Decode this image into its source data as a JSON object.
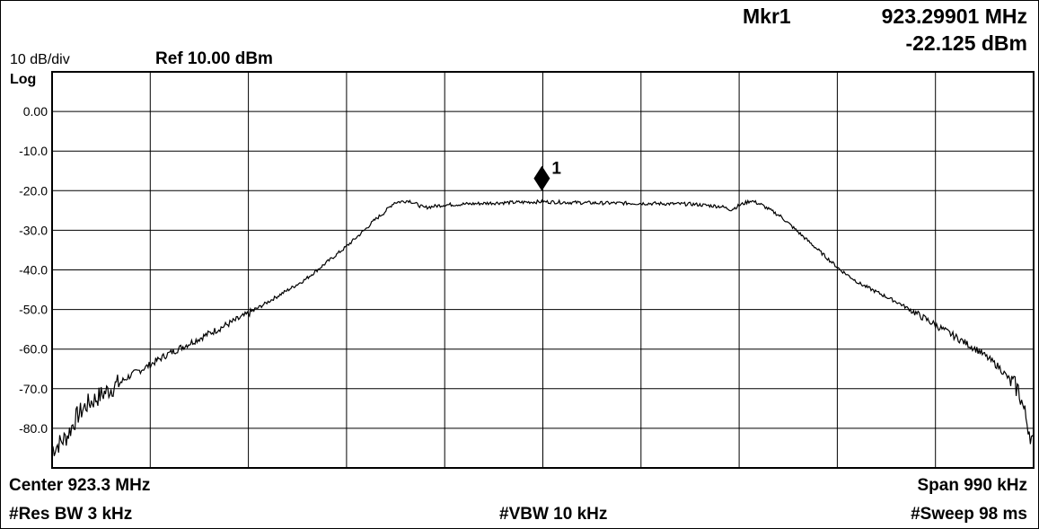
{
  "header": {
    "scale": "10 dB/div",
    "ref": "Ref 10.00 dBm",
    "scale_type": "Log",
    "marker_label": "Mkr1",
    "marker_freq": "923.29901 MHz",
    "marker_level": "-22.125 dBm"
  },
  "footer": {
    "center": "Center 923.3 MHz",
    "span": "Span 990 kHz",
    "res_bw": "#Res BW 3 kHz",
    "vbw": "#VBW 10 kHz",
    "sweep": "#Sweep 98 ms"
  },
  "marker": {
    "id": "1",
    "freq_mhz": 923.29901,
    "level_dbm": -22.125
  },
  "colors": {
    "trace": "#000000",
    "grid": "#000000",
    "background": "#ffffff"
  },
  "chart_data": {
    "type": "line",
    "x_unit": "MHz",
    "y_unit": "dBm",
    "center_mhz": 923.3,
    "span_khz": 990,
    "xlim": [
      922.805,
      923.795
    ],
    "ylim": [
      -90,
      10
    ],
    "x_divisions": 10,
    "y_divisions": 10,
    "grid": true,
    "y_tick_labels": [
      "0.00",
      "-10.0",
      "-20.0",
      "-30.0",
      "-40.0",
      "-50.0",
      "-60.0",
      "-70.0",
      "-80.0"
    ],
    "series": [
      {
        "x": [
          922.805,
          922.82,
          922.83,
          922.84,
          922.855,
          922.87,
          922.885,
          922.9,
          922.92,
          922.94,
          922.96,
          922.98,
          923.0,
          923.02,
          923.04,
          923.06,
          923.08,
          923.1,
          923.12,
          923.13,
          923.14,
          923.15,
          923.165,
          923.18,
          923.2,
          923.25,
          923.3,
          923.35,
          923.4,
          923.45,
          923.48,
          923.49,
          923.5,
          923.51,
          923.52,
          923.54,
          923.56,
          923.58,
          923.6,
          923.62,
          923.64,
          923.66,
          923.68,
          923.7,
          923.72,
          923.74,
          923.76,
          923.78,
          923.795
        ],
        "y": [
          -85.5,
          -82,
          -77,
          -74,
          -71.5,
          -69,
          -66.5,
          -64.5,
          -61.5,
          -59,
          -56.5,
          -54,
          -51.5,
          -48.5,
          -45.5,
          -42.5,
          -38.5,
          -34.5,
          -30,
          -27.5,
          -25.5,
          -23,
          -22.5,
          -24.3,
          -23.6,
          -23.1,
          -22.8,
          -23.1,
          -23.2,
          -23.4,
          -24.0,
          -24.8,
          -23.5,
          -22.5,
          -23.5,
          -26.5,
          -31,
          -35.5,
          -40,
          -43.5,
          -46,
          -48.5,
          -51.5,
          -54.5,
          -57.5,
          -60.5,
          -64.5,
          -70.5,
          -84.5
        ]
      }
    ]
  }
}
